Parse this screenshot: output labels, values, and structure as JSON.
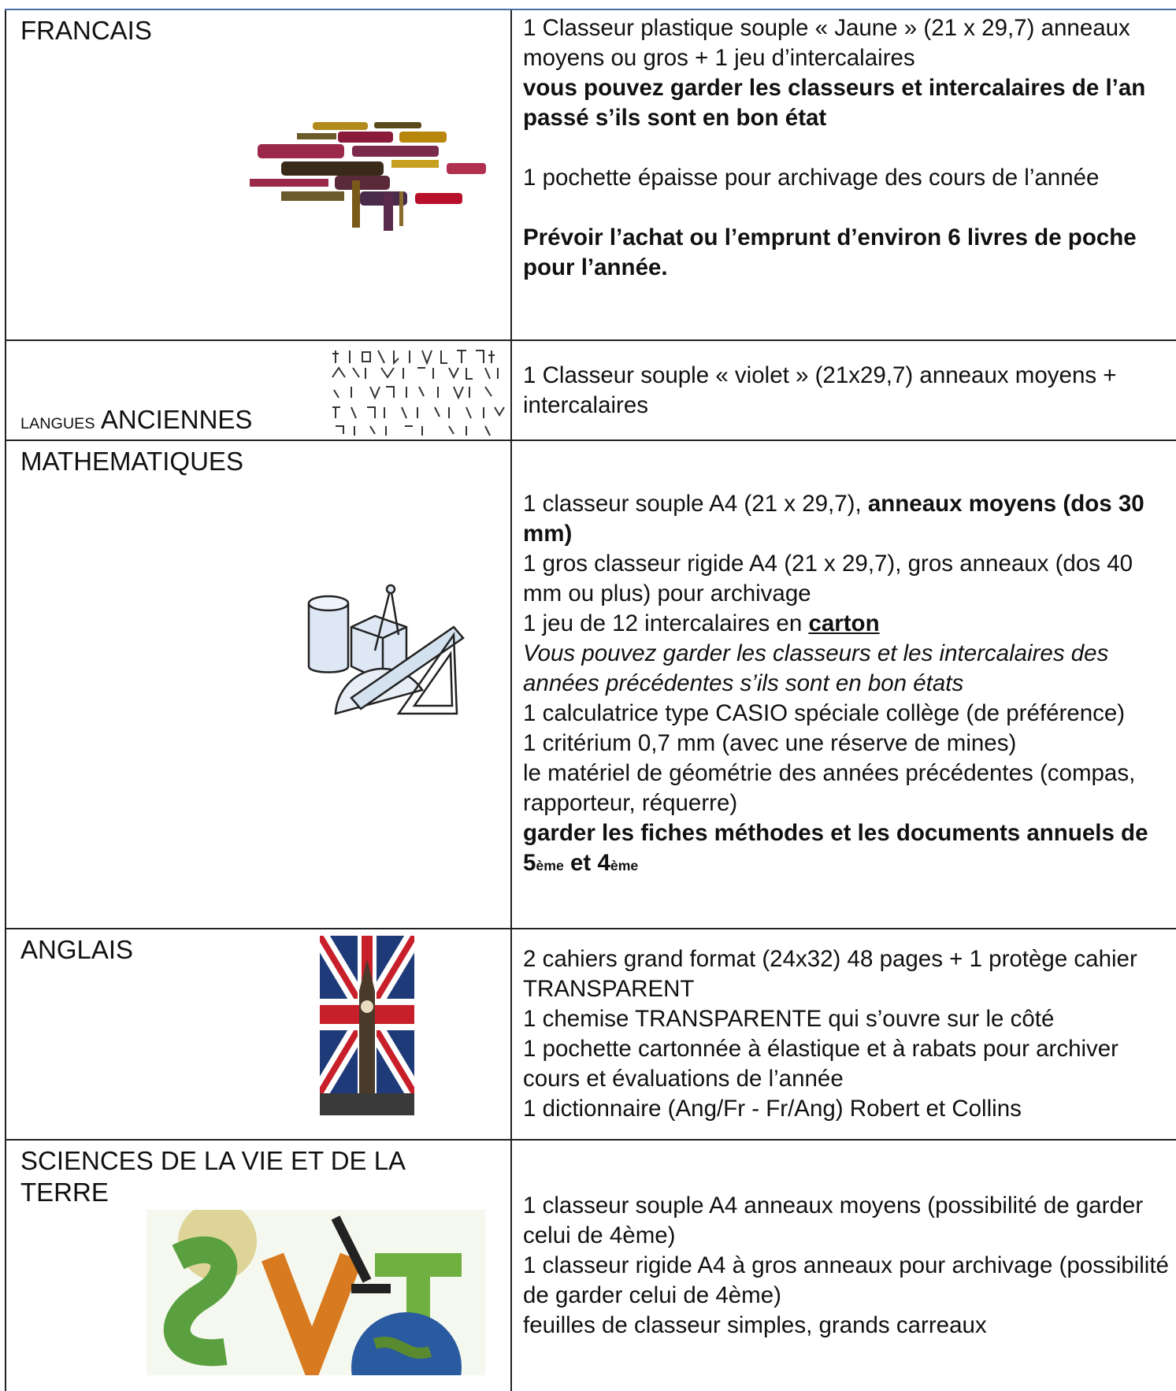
{
  "rows": [
    {
      "subject": [
        {
          "text": "FRANCAIS"
        }
      ],
      "content": [
        [
          [
            {
              "text": "1 Classeur plastique souple « Jaune » (21 x 29,7) anneaux moyens ou gros + 1 jeu d’intercalaires"
            }
          ],
          [
            {
              "text": "vous pouvez garder les classeurs et intercalaires de l’an passé s’ils sont en bon état",
              "bold": true
            }
          ]
        ],
        [
          [
            {
              "text": "1 pochette épaisse pour archivage des cours de l’année"
            }
          ]
        ],
        [
          [
            {
              "text": "Prévoir l’achat ou l’emprunt d’environ 6 livres de poche pour l’année.",
              "bold": true
            }
          ]
        ]
      ]
    },
    {
      "subject": [
        {
          "text": "LANGUES",
          "small": true
        },
        {
          "text": " ANCIENNES"
        }
      ],
      "content": [
        [
          [
            {
              "text": "1 Classeur souple « violet » (21x29,7) anneaux moyens + intercalaires"
            }
          ]
        ]
      ]
    },
    {
      "subject": [
        {
          "text": "MATHEMATIQUES"
        }
      ],
      "content": [
        [
          [
            {
              "text": "1 classeur souple A4 (21 x 29,7), "
            },
            {
              "text": "anneaux moyens (dos 30 mm)",
              "bold": true
            }
          ],
          [
            {
              "text": "1 gros classeur rigide A4 (21 x 29,7), gros anneaux (dos 40 mm ou plus) pour archivage"
            }
          ],
          [
            {
              "text": "1 jeu de 12 intercalaires en "
            },
            {
              "text": "carton",
              "bold": true,
              "underline": true
            }
          ],
          [
            {
              "text": "Vous pouvez garder les classeurs et les intercalaires des années précédentes s’ils sont en bon états",
              "italic": true
            }
          ],
          [
            {
              "text": "1 calculatrice type CASIO spéciale collège (de préférence)"
            }
          ],
          [
            {
              "text": "1 critérium 0,7 mm (avec une réserve de mines)"
            }
          ],
          [
            {
              "text": "le matériel de géométrie des années précédentes (compas, rapporteur, réquerre)"
            }
          ],
          [
            {
              "text": "garder les fiches méthodes et les documents annuels de 5",
              "bold": true
            },
            {
              "text": "ème",
              "bold": true,
              "small": true
            },
            {
              "text": " et 4",
              "bold": true
            },
            {
              "text": "ème",
              "bold": true,
              "small": true
            }
          ]
        ]
      ]
    },
    {
      "subject": [
        {
          "text": "ANGLAIS"
        }
      ],
      "content": [
        [
          [
            {
              "text": "2 cahiers grand format (24x32) 48 pages + 1 protège cahier TRANSPARENT"
            }
          ],
          [
            {
              "text": "1 chemise TRANSPARENTE qui s’ouvre sur le côté"
            }
          ],
          [
            {
              "text": "1 pochette cartonnée à élastique et à rabats pour archiver cours et évaluations de l’année"
            }
          ],
          [
            {
              "text": "1 dictionnaire (Ang/Fr - Fr/Ang) Robert et Collins"
            }
          ]
        ]
      ]
    },
    {
      "subject": [
        {
          "text": "SCIENCES DE LA VIE ET DE LA TERRE"
        }
      ],
      "content": [
        [
          [
            {
              "text": "1 classeur souple A4 anneaux moyens (possibilité de garder celui de 4ème)"
            }
          ],
          [
            {
              "text": " 1 classeur rigide A4 à gros anneaux pour archivage (possibilité de garder celui de 4ème)"
            }
          ],
          [
            {
              "text": " feuilles de classeur simples, grands carreaux"
            }
          ]
        ]
      ]
    }
  ]
}
